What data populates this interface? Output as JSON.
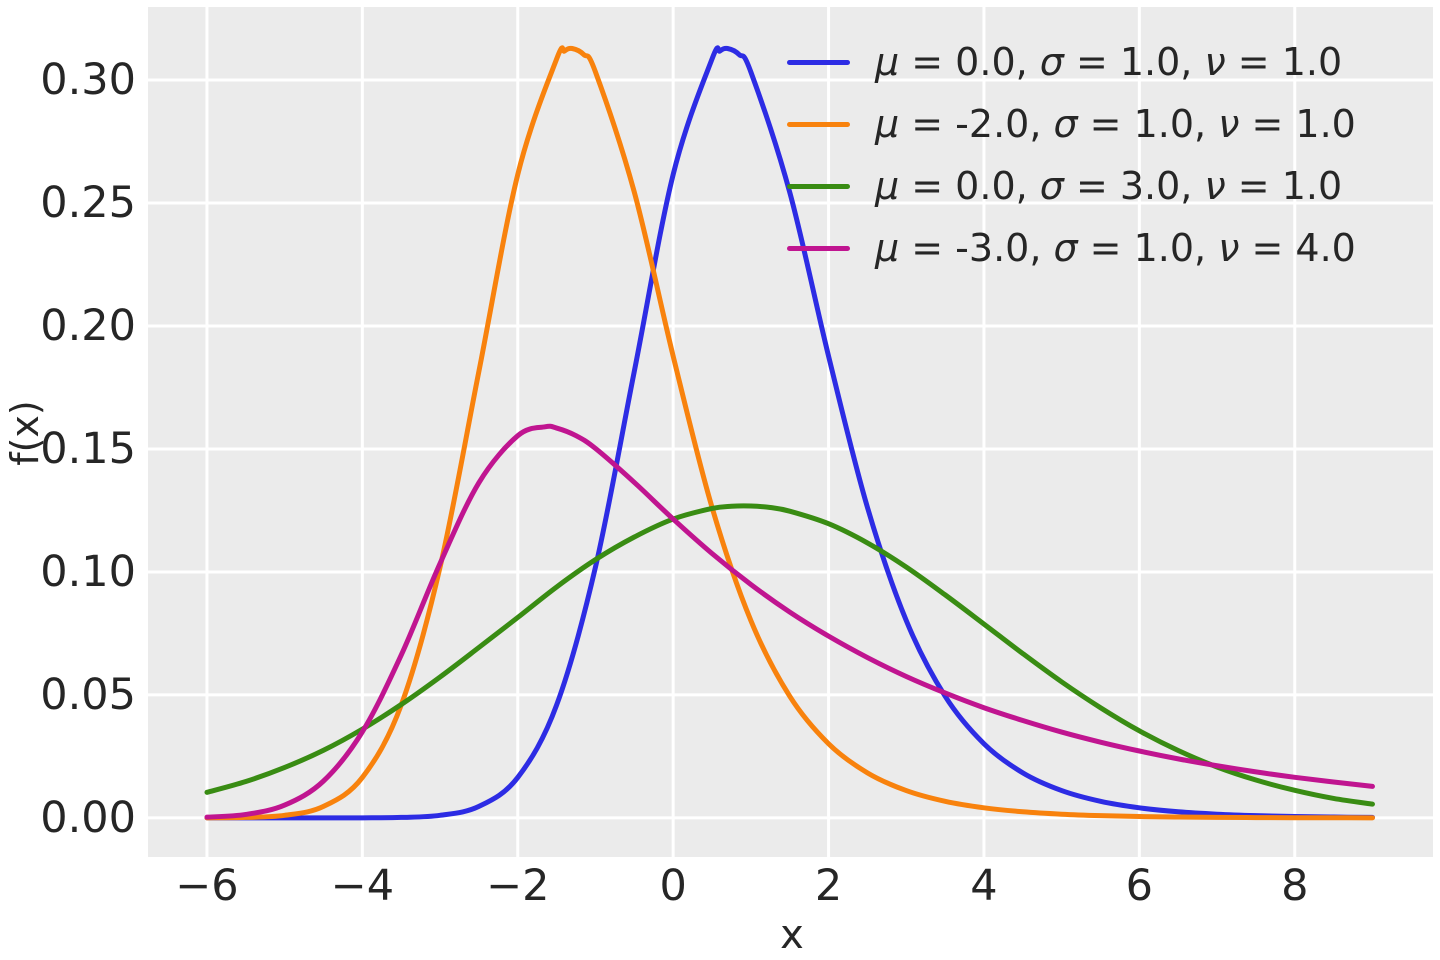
{
  "style": {
    "figure_background": "#ffffff",
    "axes_background": "#ebebeb",
    "grid_color": "#ffffff",
    "text_color": "#262626"
  },
  "chart_data": {
    "type": "line",
    "title": "",
    "xlabel": "x",
    "ylabel": "f(x)",
    "xlim": [
      -6.759,
      9.779
    ],
    "ylim": [
      -0.0159,
      0.3297
    ],
    "grid": true,
    "legend_position": "upper right",
    "x_ticks": [
      {
        "value": -6,
        "label": "−6"
      },
      {
        "value": -4,
        "label": "−4"
      },
      {
        "value": -2,
        "label": "−2"
      },
      {
        "value": 0,
        "label": "0"
      },
      {
        "value": 2,
        "label": "2"
      },
      {
        "value": 4,
        "label": "4"
      },
      {
        "value": 6,
        "label": "6"
      },
      {
        "value": 8,
        "label": "8"
      }
    ],
    "y_ticks": [
      {
        "value": 0.0,
        "label": "0.00"
      },
      {
        "value": 0.05,
        "label": "0.05"
      },
      {
        "value": 0.1,
        "label": "0.10"
      },
      {
        "value": 0.15,
        "label": "0.15"
      },
      {
        "value": 0.2,
        "label": "0.20"
      },
      {
        "value": 0.25,
        "label": "0.25"
      },
      {
        "value": 0.3,
        "label": "0.30"
      }
    ],
    "series": [
      {
        "name": "mu-0-sigma-1-nu-1",
        "label": "μ = 0.0, σ = 1.0, ν = 1.0",
        "color": "#2d2ce4",
        "params": {
          "mu": 0.0,
          "sigma": 1.0,
          "nu": 1.0
        },
        "points": [
          [
            -6,
            0
          ],
          [
            -5.5,
            0
          ],
          [
            -5,
            0
          ],
          [
            -4.5,
            1e-05
          ],
          [
            -4,
            3e-05
          ],
          [
            -3.5,
            0.00019
          ],
          [
            -3,
            0.00105
          ],
          [
            -2.5,
            0.00467
          ],
          [
            -2,
            0.01645
          ],
          [
            -1.5,
            0.04588
          ],
          [
            -1,
            0.10196
          ],
          [
            -0.5,
            0.1816
          ],
          [
            0,
            0.26161
          ],
          [
            0.5,
            0.30854
          ],
          [
            0.6,
            0.31179
          ],
          [
            0.7,
            0.31283
          ],
          [
            0.85,
            0.31033
          ],
          [
            1,
            0.30327
          ],
          [
            1.5,
            0.25439
          ],
          [
            2,
            0.18773
          ],
          [
            2.5,
            0.12629
          ],
          [
            3,
            0.08022
          ],
          [
            3.5,
            0.04948
          ],
          [
            4,
            0.03016
          ],
          [
            4.5,
            0.01831
          ],
          [
            5,
            0.01111
          ],
          [
            5.5,
            0.00674
          ],
          [
            6,
            0.00409
          ],
          [
            6.5,
            0.00248
          ],
          [
            7,
            0.0015
          ],
          [
            7.5,
            0.00091
          ],
          [
            8,
            0.00055
          ],
          [
            8.5,
            0.00034
          ],
          [
            9,
            0.0002
          ]
        ]
      },
      {
        "name": "mu--2-sigma-1-nu-1",
        "label": "μ = -2.0, σ = 1.0, ν = 1.0",
        "color": "#f8820d",
        "params": {
          "mu": -2.0,
          "sigma": 1.0,
          "nu": 1.0
        },
        "points": [
          [
            -6,
            3e-05
          ],
          [
            -5.5,
            0.00019
          ],
          [
            -5,
            0.00105
          ],
          [
            -4.5,
            0.00467
          ],
          [
            -4,
            0.01645
          ],
          [
            -3.5,
            0.04588
          ],
          [
            -3,
            0.10196
          ],
          [
            -2.5,
            0.1816
          ],
          [
            -2,
            0.26161
          ],
          [
            -1.5,
            0.30854
          ],
          [
            -1.4,
            0.31179
          ],
          [
            -1.3,
            0.31283
          ],
          [
            -1.15,
            0.31033
          ],
          [
            -1,
            0.30327
          ],
          [
            -0.5,
            0.25439
          ],
          [
            0,
            0.18773
          ],
          [
            0.5,
            0.12629
          ],
          [
            1,
            0.08022
          ],
          [
            1.5,
            0.04948
          ],
          [
            2,
            0.03016
          ],
          [
            2.5,
            0.01831
          ],
          [
            3,
            0.01111
          ],
          [
            3.5,
            0.00674
          ],
          [
            4,
            0.00409
          ],
          [
            4.5,
            0.00248
          ],
          [
            5,
            0.0015
          ],
          [
            5.5,
            0.00091
          ],
          [
            6,
            0.00055
          ],
          [
            6.5,
            0.00034
          ],
          [
            7,
            0.0002
          ],
          [
            7.5,
            0.00012
          ],
          [
            8,
            7e-05
          ],
          [
            8.5,
            5e-05
          ],
          [
            9,
            3e-05
          ]
        ]
      },
      {
        "name": "mu-0-sigma-3-nu-1",
        "label": "μ = 0.0, σ = 3.0, ν = 1.0",
        "color": "#398c13",
        "params": {
          "mu": 0.0,
          "sigma": 3.0,
          "nu": 1.0
        },
        "points": [
          [
            -6,
            0.0104
          ],
          [
            -5.5,
            0.0148
          ],
          [
            -5,
            0.0205
          ],
          [
            -4.5,
            0.0275
          ],
          [
            -4,
            0.0361
          ],
          [
            -3.5,
            0.0461
          ],
          [
            -3,
            0.0573
          ],
          [
            -2.5,
            0.0693
          ],
          [
            -2,
            0.0815
          ],
          [
            -1.5,
            0.0939
          ],
          [
            -1,
            0.105
          ],
          [
            -0.5,
            0.1142
          ],
          [
            0,
            0.1215
          ],
          [
            0.5,
            0.1258
          ],
          [
            0.75,
            0.1267
          ],
          [
            1,
            0.1268
          ],
          [
            1.25,
            0.1262
          ],
          [
            1.5,
            0.1247
          ],
          [
            2,
            0.1196
          ],
          [
            2.5,
            0.1118
          ],
          [
            3,
            0.102
          ],
          [
            3.5,
            0.0907
          ],
          [
            4,
            0.0788
          ],
          [
            4.5,
            0.0668
          ],
          [
            5,
            0.0553
          ],
          [
            5.5,
            0.0448
          ],
          [
            6,
            0.0354
          ],
          [
            6.5,
            0.0274
          ],
          [
            7,
            0.0207
          ],
          [
            7.5,
            0.0154
          ],
          [
            8,
            0.0112
          ],
          [
            8.5,
            0.0079
          ],
          [
            9,
            0.0056
          ]
        ]
      },
      {
        "name": "mu--3-sigma-1-nu-4",
        "label": "μ = -3.0, σ = 1.0, ν = 4.0",
        "color": "#c01590",
        "params": {
          "mu": -3.0,
          "sigma": 1.0,
          "nu": 4.0
        },
        "points": [
          [
            -6,
            0.0003
          ],
          [
            -5.5,
            0.0014
          ],
          [
            -5,
            0.0052
          ],
          [
            -4.5,
            0.015
          ],
          [
            -4,
            0.035
          ],
          [
            -3.5,
            0.0662
          ],
          [
            -3,
            0.1035
          ],
          [
            -2.5,
            0.1363
          ],
          [
            -2,
            0.1554
          ],
          [
            -1.65,
            0.159
          ],
          [
            -1.5,
            0.1585
          ],
          [
            -1.25,
            0.1554
          ],
          [
            -1,
            0.1502
          ],
          [
            -0.5,
            0.1364
          ],
          [
            0,
            0.1215
          ],
          [
            0.5,
            0.1075
          ],
          [
            1,
            0.0949
          ],
          [
            1.5,
            0.0837
          ],
          [
            2,
            0.0739
          ],
          [
            2.5,
            0.0652
          ],
          [
            3,
            0.0575
          ],
          [
            3.5,
            0.0508
          ],
          [
            4,
            0.0448
          ],
          [
            4.5,
            0.0396
          ],
          [
            5,
            0.0349
          ],
          [
            5.5,
            0.0308
          ],
          [
            6,
            0.0272
          ],
          [
            6.5,
            0.024
          ],
          [
            7,
            0.0212
          ],
          [
            7.5,
            0.0187
          ],
          [
            8,
            0.0165
          ],
          [
            8.5,
            0.0146
          ],
          [
            9,
            0.0128
          ]
        ]
      }
    ]
  }
}
